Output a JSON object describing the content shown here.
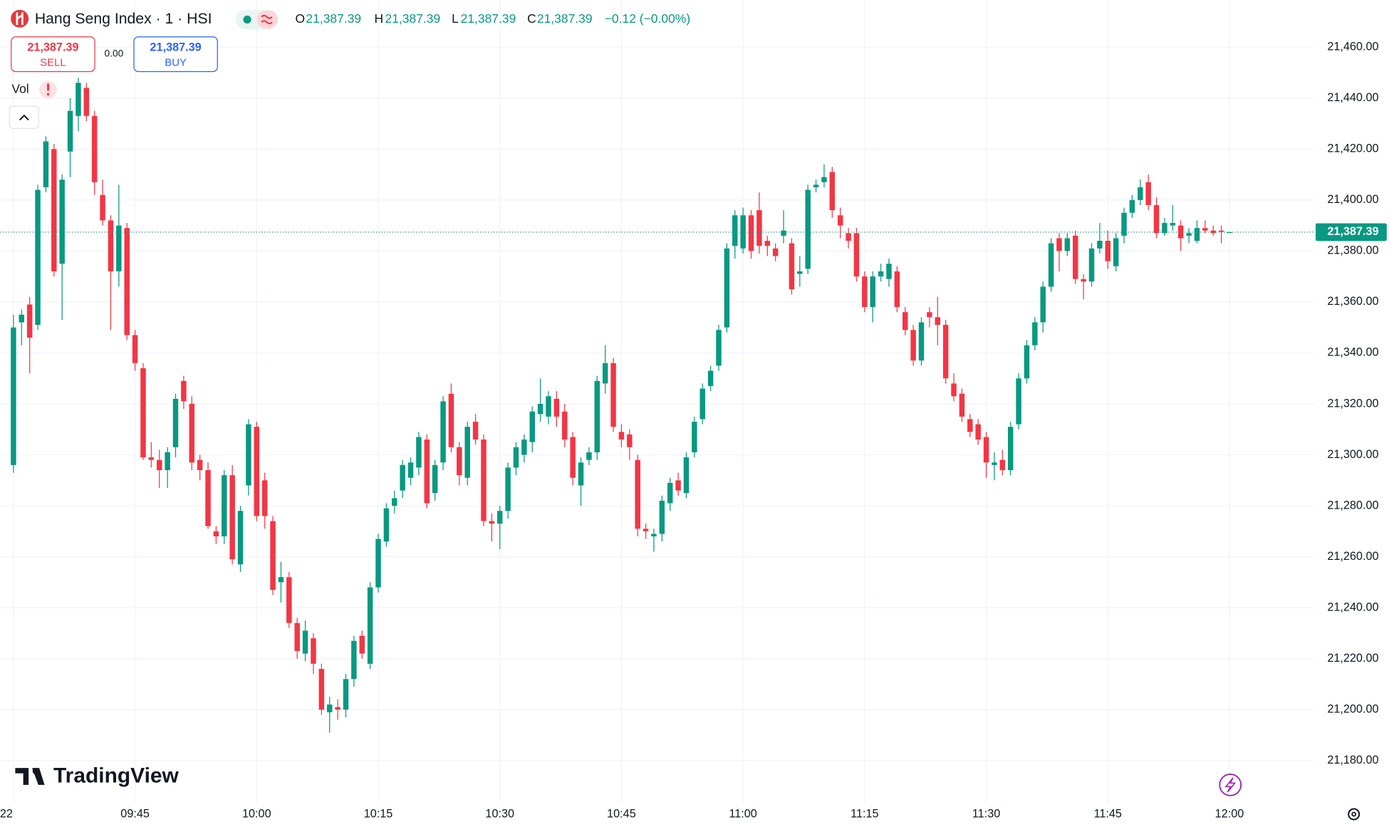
{
  "chart_data": {
    "type": "candlestick",
    "title": "Hang Seng Index · 1 · HSI",
    "legend": {
      "open_label": "O",
      "open": "21,387.39",
      "high_label": "H",
      "high": "21,387.39",
      "low_label": "L",
      "low": "21,387.39",
      "close_label": "C",
      "close": "21,387.39",
      "change": "−0.12 (−0.00%)"
    },
    "sell": {
      "price": "21,387.39",
      "label": "SELL"
    },
    "spread": "0.00",
    "buy": {
      "price": "21,387.39",
      "label": "BUY"
    },
    "volume_label": "Vol",
    "logo": "TradingView",
    "up_color": "#089981",
    "down_color": "#f23645",
    "last_price": {
      "value": 21387.39,
      "label": "21,387.39"
    },
    "grid": true,
    "ylim": [
      21163.5,
      21478.5
    ],
    "yticks": [
      {
        "value": 21460,
        "label": "21,460.00"
      },
      {
        "value": 21440,
        "label": "21,440.00"
      },
      {
        "value": 21420,
        "label": "21,420.00"
      },
      {
        "value": 21400,
        "label": "21,400.00"
      },
      {
        "value": 21380,
        "label": "21,380.00"
      },
      {
        "value": 21360,
        "label": "21,360.00"
      },
      {
        "value": 21340,
        "label": "21,340.00"
      },
      {
        "value": 21320,
        "label": "21,320.00"
      },
      {
        "value": 21300,
        "label": "21,300.00"
      },
      {
        "value": 21280,
        "label": "21,280.00"
      },
      {
        "value": 21260,
        "label": "21,260.00"
      },
      {
        "value": 21240,
        "label": "21,240.00"
      },
      {
        "value": 21220,
        "label": "21,220.00"
      },
      {
        "value": 21200,
        "label": "21,200.00"
      },
      {
        "value": 21180,
        "label": "21,180.00"
      }
    ],
    "xticks": [
      {
        "value": "09:30",
        "label": "22"
      },
      "09:45",
      "10:00",
      "10:15",
      "10:30",
      "10:45",
      "11:00",
      "11:15",
      "11:30",
      "11:45",
      "12:00"
    ],
    "x": [
      "09:30",
      "09:31",
      "09:32",
      "09:33",
      "09:34",
      "09:35",
      "09:36",
      "09:37",
      "09:38",
      "09:39",
      "09:40",
      "09:41",
      "09:42",
      "09:43",
      "09:44",
      "09:45",
      "09:46",
      "09:47",
      "09:48",
      "09:49",
      "09:50",
      "09:51",
      "09:52",
      "09:53",
      "09:54",
      "09:55",
      "09:56",
      "09:57",
      "09:58",
      "09:59",
      "10:00",
      "10:01",
      "10:02",
      "10:03",
      "10:04",
      "10:05",
      "10:06",
      "10:07",
      "10:08",
      "10:09",
      "10:10",
      "10:11",
      "10:12",
      "10:13",
      "10:14",
      "10:15",
      "10:16",
      "10:17",
      "10:18",
      "10:19",
      "10:20",
      "10:21",
      "10:22",
      "10:23",
      "10:24",
      "10:25",
      "10:26",
      "10:27",
      "10:28",
      "10:29",
      "10:30",
      "10:31",
      "10:32",
      "10:33",
      "10:34",
      "10:35",
      "10:36",
      "10:37",
      "10:38",
      "10:39",
      "10:40",
      "10:41",
      "10:42",
      "10:43",
      "10:44",
      "10:45",
      "10:46",
      "10:47",
      "10:48",
      "10:49",
      "10:50",
      "10:51",
      "10:52",
      "10:53",
      "10:54",
      "10:55",
      "10:56",
      "10:57",
      "10:58",
      "10:59",
      "11:00",
      "11:01",
      "11:02",
      "11:03",
      "11:04",
      "11:05",
      "11:06",
      "11:07",
      "11:08",
      "11:09",
      "11:10",
      "11:11",
      "11:12",
      "11:13",
      "11:14",
      "11:15",
      "11:16",
      "11:17",
      "11:18",
      "11:19",
      "11:20",
      "11:21",
      "11:22",
      "11:23",
      "11:24",
      "11:25",
      "11:26",
      "11:27",
      "11:28",
      "11:29",
      "11:30",
      "11:31",
      "11:32",
      "11:33",
      "11:34",
      "11:35",
      "11:36",
      "11:37",
      "11:38",
      "11:39",
      "11:40",
      "11:41",
      "11:42",
      "11:43",
      "11:44",
      "11:45",
      "11:46",
      "11:47",
      "11:48",
      "11:49",
      "11:50",
      "11:51",
      "11:52",
      "11:53",
      "11:54",
      "11:55",
      "11:56",
      "11:57",
      "11:58",
      "11:59",
      "12:00"
    ],
    "open": [
      21296,
      21352,
      21359,
      21351,
      21405,
      21420,
      21375,
      21419,
      21433,
      21444,
      21433,
      21402,
      21392,
      21372,
      21389,
      21347,
      21334,
      21299,
      21298,
      21294,
      21303,
      21329,
      21320,
      21298,
      21294,
      21270,
      21268,
      21292,
      21257,
      21288,
      21311,
      21290,
      21274,
      21250,
      21252,
      21234,
      21222,
      21228,
      21216,
      21199,
      21201,
      21200,
      21212,
      21229,
      21218,
      21248,
      21266,
      21280,
      21286,
      21291,
      21295,
      21306,
      21285,
      21297,
      21324,
      21303,
      21291,
      21313,
      21306,
      21274,
      21273,
      21278,
      21295,
      21300,
      21305,
      21316,
      21315,
      21322,
      21317,
      21307,
      21288,
      21298,
      21301,
      21328,
      21336,
      21309,
      21308,
      21298,
      21271,
      21268,
      21269,
      21281,
      21290,
      21285,
      21301,
      21314,
      21327,
      21335,
      21350,
      21382,
      21381,
      21394,
      21396,
      21384,
      21381,
      21386,
      21383,
      21371,
      21373,
      21405,
      21407,
      21411,
      21394,
      21387,
      21387,
      21370,
      21358,
      21370,
      21369,
      21372,
      21356,
      21349,
      21337,
      21356,
      21354,
      21351,
      21328,
      21324,
      21314,
      21312,
      21307,
      21296,
      21298,
      21294,
      21312,
      21330,
      21343,
      21352,
      21366,
      21385,
      21380,
      21386,
      21369,
      21368,
      21381,
      21384,
      21374,
      21386,
      21395,
      21400,
      21407,
      21398,
      21387,
      21390,
      21390,
      21386,
      21384,
      21389,
      21388,
      21388,
      21387.39
    ],
    "high": [
      21355,
      21357,
      21362,
      21406,
      21425,
      21422,
      21410,
      21440,
      21448,
      21446,
      21435,
      21408,
      21394,
      21406,
      21391,
      21349,
      21336,
      21305,
      21302,
      21303,
      21324,
      21331,
      21323,
      21300,
      21297,
      21272,
      21294,
      21296,
      21280,
      21314,
      21313,
      21293,
      21276,
      21258,
      21254,
      21236,
      21235,
      21230,
      21218,
      21205,
      21204,
      21214,
      21229,
      21231,
      21250,
      21269,
      21281,
      21286,
      21298,
      21299,
      21309,
      21308,
      21298,
      21323,
      21328,
      21305,
      21313,
      21316,
      21308,
      21277,
      21280,
      21297,
      21305,
      21308,
      21319,
      21330,
      21325,
      21325,
      21320,
      21309,
      21299,
      21303,
      21331,
      21343,
      21338,
      21312,
      21310,
      21300,
      21273,
      21271,
      21284,
      21291,
      21293,
      21301,
      21315,
      21328,
      21335,
      21351,
      21383,
      21396,
      21397,
      21396,
      21403,
      21386,
      21383,
      21396,
      21385,
      21378,
      21406,
      21408,
      21414,
      21413,
      21397,
      21389,
      21389,
      21372,
      21372,
      21375,
      21377,
      21374,
      21358,
      21351,
      21354,
      21358,
      21362,
      21353,
      21332,
      21326,
      21316,
      21314,
      21309,
      21301,
      21302,
      21313,
      21332,
      21345,
      21354,
      21368,
      21385,
      21387,
      21387,
      21388,
      21371,
      21383,
      21391,
      21388,
      21387,
      21397,
      21402,
      21408,
      21410,
      21401,
      21393,
      21398,
      21392,
      21389,
      21392,
      21392,
      21390,
      21390,
      21387.39
    ],
    "low": [
      21293,
      21343,
      21332,
      21349,
      21403,
      21370,
      21353,
      21409,
      21427,
      21431,
      21402,
      21390,
      21349,
      21366,
      21345,
      21333,
      21298,
      21295,
      21287,
      21287,
      21299,
      21318,
      21294,
      21290,
      21271,
      21265,
      21265,
      21257,
      21254,
      21284,
      21274,
      21271,
      21245,
      21242,
      21232,
      21220,
      21219,
      21214,
      21198,
      21191,
      21196,
      21197,
      21209,
      21220,
      21216,
      21246,
      21264,
      21277,
      21283,
      21288,
      21292,
      21279,
      21282,
      21294,
      21301,
      21288,
      21288,
      21304,
      21272,
      21266,
      21263,
      21275,
      21292,
      21297,
      21301,
      21313,
      21312,
      21311,
      21303,
      21288,
      21280,
      21296,
      21298,
      21324,
      21309,
      21303,
      21298,
      21268,
      21267,
      21262,
      21266,
      21278,
      21284,
      21283,
      21299,
      21312,
      21325,
      21333,
      21348,
      21377,
      21379,
      21377,
      21379,
      21378,
      21376,
      21383,
      21363,
      21366,
      21371,
      21403,
      21405,
      21393,
      21385,
      21381,
      21368,
      21356,
      21352,
      21368,
      21366,
      21356,
      21347,
      21335,
      21335,
      21350,
      21343,
      21328,
      21321,
      21313,
      21307,
      21304,
      21291,
      21290,
      21292,
      21292,
      21310,
      21328,
      21341,
      21348,
      21364,
      21372,
      21378,
      21367,
      21361,
      21366,
      21379,
      21373,
      21372,
      21383,
      21393,
      21398,
      21396,
      21385,
      21386,
      21388,
      21380,
      21383,
      21383,
      21387,
      21386,
      21383,
      21387.39
    ],
    "close": [
      21350,
      21355,
      21346,
      21404,
      21423,
      21372,
      21408,
      21435,
      21446,
      21433,
      21407,
      21392,
      21372,
      21390,
      21347,
      21336,
      21299,
      21298,
      21294,
      21301,
      21322,
      21321,
      21297,
      21294,
      21272,
      21268,
      21292,
      21259,
      21278,
      21312,
      21276,
      21276,
      21247,
      21252,
      21234,
      21223,
      21231,
      21218,
      21200,
      21202,
      21200,
      21212,
      21227,
      21222,
      21248,
      21267,
      21279,
      21283,
      21296,
      21297,
      21307,
      21281,
      21296,
      21321,
      21303,
      21292,
      21311,
      21306,
      21274,
      21273,
      21278,
      21295,
      21303,
      21306,
      21317,
      21320,
      21323,
      21315,
      21306,
      21291,
      21297,
      21301,
      21329,
      21336,
      21311,
      21306,
      21303,
      21271,
      21270,
      21269,
      21282,
      21289,
      21286,
      21299,
      21313,
      21326,
      21333,
      21349,
      21381,
      21394,
      21394,
      21380,
      21382,
      21382,
      21378,
      21388,
      21365,
      21372,
      21404,
      21406,
      21409,
      21396,
      21390,
      21384,
      21370,
      21358,
      21370,
      21372,
      21375,
      21358,
      21349,
      21337,
      21352,
      21354,
      21351,
      21330,
      21323,
      21315,
      21309,
      21306,
      21297,
      21297,
      21294,
      21311,
      21330,
      21343,
      21352,
      21366,
      21383,
      21380,
      21385,
      21369,
      21368,
      21381,
      21384,
      21376,
      21385,
      21395,
      21400,
      21405,
      21398,
      21387,
      21391,
      21391,
      21385,
      21387,
      21389,
      21388,
      21387,
      21387.51,
      21387.39
    ]
  }
}
